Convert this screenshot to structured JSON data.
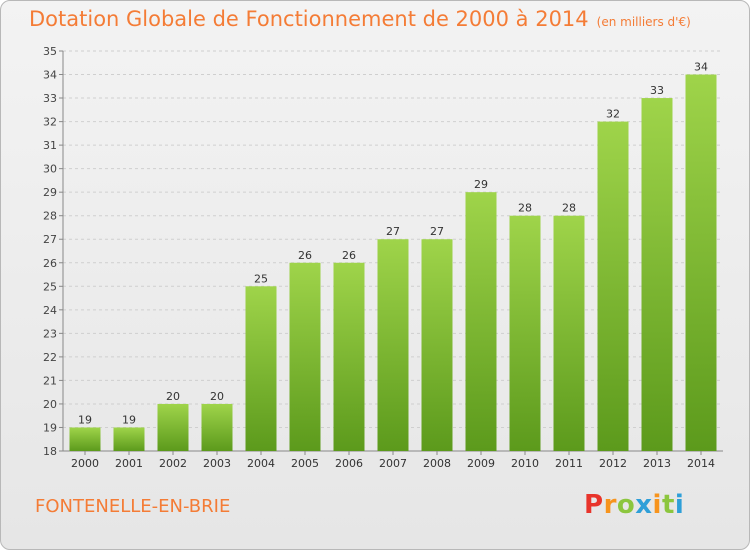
{
  "chart_title": "Dotation Globale de Fonctionnement de 2000 à 2014",
  "chart_unit": "(en milliers d'€)",
  "commune": "FONTENELLE-EN-BRIE",
  "logo": {
    "text": "Proxiti",
    "letters": [
      {
        "ch": "P",
        "color": "#e8342b"
      },
      {
        "ch": "r",
        "color": "#f7941d"
      },
      {
        "ch": "o",
        "color": "#8cc63e"
      },
      {
        "ch": "x",
        "color": "#2e9fd8"
      },
      {
        "ch": "i",
        "color": "#f7941d"
      },
      {
        "ch": "t",
        "color": "#8cc63e"
      },
      {
        "ch": "i",
        "color": "#2e9fd8"
      }
    ]
  },
  "colors": {
    "bar_top": "#9fd44a",
    "bar_bottom": "#5c9a1c",
    "accent": "#f47c36"
  },
  "chart_data": {
    "type": "bar",
    "categories": [
      "2000",
      "2001",
      "2002",
      "2003",
      "2004",
      "2005",
      "2006",
      "2007",
      "2008",
      "2009",
      "2010",
      "2011",
      "2012",
      "2013",
      "2014"
    ],
    "values": [
      19,
      19,
      20,
      20,
      25,
      26,
      26,
      27,
      27,
      29,
      28,
      28,
      32,
      33,
      34
    ],
    "ylim": [
      18,
      35
    ],
    "yticks": [
      18,
      19,
      20,
      21,
      22,
      23,
      24,
      25,
      26,
      27,
      28,
      29,
      30,
      31,
      32,
      33,
      34,
      35
    ],
    "grid": true,
    "data_labels": true
  }
}
